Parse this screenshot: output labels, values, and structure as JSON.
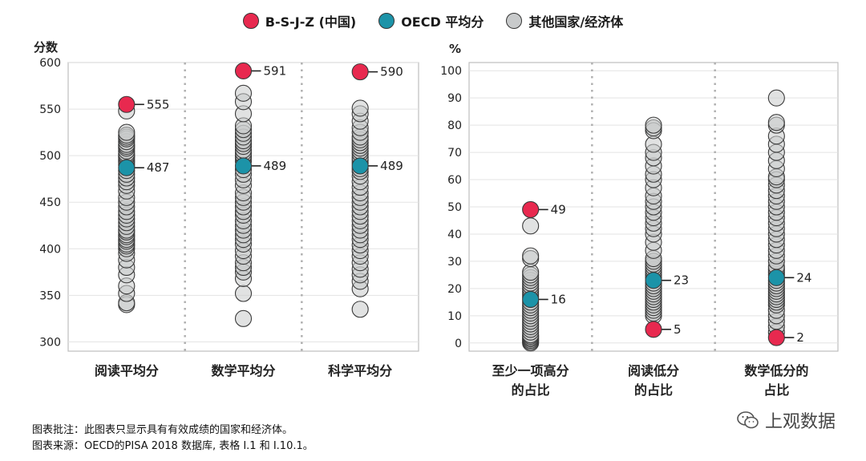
{
  "legend": {
    "items": [
      {
        "label": "B-S-J-Z (中国)",
        "color": "#e8294f"
      },
      {
        "label": "OECD 平均分",
        "color": "#1c93a8"
      },
      {
        "label": "其他国家/经济体",
        "color": "#c8cacb"
      }
    ]
  },
  "footer": {
    "note": "图表批注：此图表只显示具有有效成绩的国家和经济体。",
    "source": "图表来源：OECD的PISA 2018 数据库, 表格 I.1 和 I.10.1。"
  },
  "watermark": {
    "text": "上观数据"
  },
  "colors": {
    "china": "#e8294f",
    "oecd": "#1c93a8",
    "other": "#c8cacb",
    "outline": "#3a3a3a"
  },
  "chart_data": [
    {
      "type": "scatter",
      "title": "",
      "ylabel": "分数",
      "ylim": [
        300,
        600
      ],
      "yticks": [
        300,
        350,
        400,
        450,
        500,
        550,
        600
      ],
      "categories": [
        "阅读平均分",
        "数学平均分",
        "科学平均分"
      ],
      "series": [
        {
          "name": "B-S-J-Z (中国)",
          "values": [
            555,
            591,
            590
          ],
          "labels": [
            "555",
            "591",
            "590"
          ]
        },
        {
          "name": "OECD 平均分",
          "values": [
            487,
            489,
            489
          ],
          "labels": [
            "487",
            "489",
            "489"
          ]
        },
        {
          "name": "其他国家/经济体",
          "values": [
            [
              340,
              342,
              352,
              360,
              372,
              380,
              388,
              395,
              400,
              403,
              405,
              408,
              410,
              413,
              415,
              418,
              420,
              424,
              428,
              432,
              436,
              440,
              445,
              450,
              455,
              462,
              468,
              472,
              476,
              480,
              484,
              490,
              493,
              495,
              498,
              500,
              502,
              505,
              508,
              510,
              512,
              515,
              518,
              520,
              522,
              525,
              548
            ],
            [
              325,
              352,
              368,
              375,
              380,
              385,
              392,
              398,
              405,
              410,
              415,
              420,
              425,
              430,
              436,
              440,
              445,
              450,
              455,
              460,
              468,
              474,
              480,
              485,
              494,
              498,
              500,
              503,
              506,
              510,
              513,
              516,
              520,
              524,
              528,
              532,
              545,
              558,
              567
            ],
            [
              335,
              357,
              365,
              372,
              378,
              385,
              392,
              398,
              404,
              410,
              415,
              420,
              425,
              430,
              435,
              440,
              445,
              450,
              455,
              460,
              466,
              472,
              478,
              483,
              486,
              492,
              495,
              498,
              502,
              505,
              508,
              511,
              514,
              517,
              520,
              525,
              530,
              537,
              545,
              551
            ]
          ]
        }
      ]
    },
    {
      "type": "scatter",
      "title": "",
      "ylabel": "%",
      "ylim": [
        0,
        100
      ],
      "yticks": [
        0,
        10,
        20,
        30,
        40,
        50,
        60,
        70,
        80,
        90,
        100
      ],
      "categories": [
        [
          "至少一项高分",
          "的占比"
        ],
        [
          "阅读低分",
          "的占比"
        ],
        [
          "数学低分的",
          "占比"
        ]
      ],
      "series": [
        {
          "name": "B-S-J-Z (中国)",
          "values": [
            49,
            5,
            2
          ],
          "labels": [
            "49",
            "5",
            "2"
          ]
        },
        {
          "name": "OECD 平均分",
          "values": [
            16,
            23,
            24
          ],
          "labels": [
            "16",
            "23",
            "24"
          ]
        },
        {
          "name": "其他国家/经济体",
          "values": [
            [
              0,
              0.5,
              1,
              1.5,
              2,
              2.5,
              3,
              4,
              5,
              6,
              7,
              8,
              9,
              10,
              11,
              12,
              13,
              14,
              15,
              17,
              18,
              19,
              20,
              21,
              22,
              23,
              24,
              25,
              26,
              31,
              32,
              43
            ],
            [
              10,
              11,
              12,
              13,
              14,
              15,
              16,
              17,
              18,
              19,
              20,
              21,
              22,
              24,
              25,
              26,
              27,
              28,
              29,
              30,
              31,
              34,
              37,
              40,
              42,
              44,
              46,
              48,
              50,
              52,
              54,
              57,
              60,
              62,
              65,
              68,
              70,
              73,
              78,
              79,
              80
            ],
            [
              4,
              6,
              8,
              10,
              12,
              14,
              15,
              16,
              17,
              18,
              19,
              20,
              21,
              22,
              23,
              25,
              26,
              27,
              28,
              30,
              32,
              34,
              36,
              38,
              40,
              42,
              44,
              46,
              48,
              50,
              52,
              54,
              56,
              58,
              60,
              61,
              64,
              67,
              70,
              73,
              76,
              80,
              81,
              90
            ]
          ]
        }
      ]
    }
  ]
}
